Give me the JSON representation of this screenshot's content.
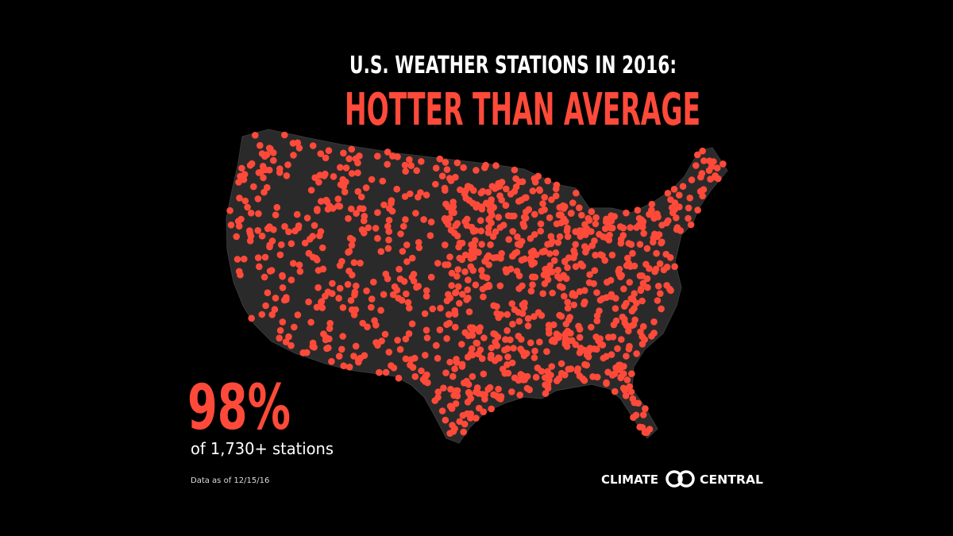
{
  "header": {
    "title": "U.S. WEATHER STATIONS IN 2016:",
    "subtitle": "HOTTER THAN AVERAGE"
  },
  "stat": {
    "value": "98%",
    "caption": "of 1,730+ stations"
  },
  "footnote": "Data as of 12/15/16",
  "logo": {
    "left": "CLIMATE",
    "right": "CENTRAL"
  }
}
